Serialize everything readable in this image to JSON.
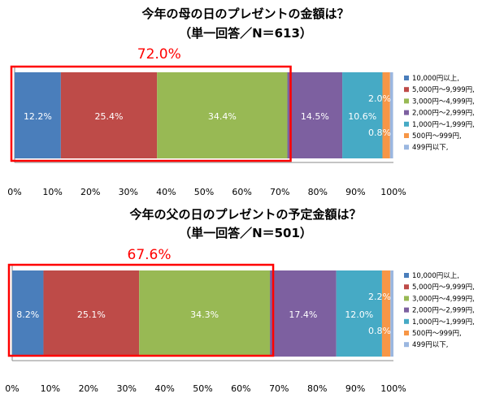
{
  "chart_data": [
    {
      "type": "bar",
      "orientation": "horizontal-stacked",
      "title": "今年の母の日のプレゼントの金額は？",
      "subtitle": "（単一回答／N＝613）",
      "highlight_label": "72.0%",
      "highlight_color": "#ff0000",
      "xlim": [
        0,
        100
      ],
      "x_ticks": [
        "0%",
        "10%",
        "20%",
        "30%",
        "40%",
        "50%",
        "60%",
        "70%",
        "80%",
        "90%",
        "100%"
      ],
      "legend_position": "right",
      "series": [
        {
          "name": "10,000円以上,",
          "value": 12.2,
          "label": "12.2%",
          "color": "#4a7ebb"
        },
        {
          "name": "5,000円～9,999円,",
          "value": 25.4,
          "label": "25.4%",
          "color": "#be4b48"
        },
        {
          "name": "3,000円～4,999円,",
          "value": 34.4,
          "label": "34.4%",
          "color": "#98b954"
        },
        {
          "name": "2,000円～2,999円,",
          "value": 14.5,
          "label": "14.5%",
          "color": "#7d60a0"
        },
        {
          "name": "1,000円～1,999円,",
          "value": 10.6,
          "label": "10.6%",
          "color": "#46aac5"
        },
        {
          "name": "500円～999円,",
          "value": 2.0,
          "label": "2.0%",
          "color": "#f79646"
        },
        {
          "name": "499円以下,",
          "value": 0.8,
          "label": "0.8%",
          "color": "#9bb7e0"
        }
      ]
    },
    {
      "type": "bar",
      "orientation": "horizontal-stacked",
      "title": "今年の父の日のプレゼントの予定金額は？",
      "subtitle": "（単一回答／N＝501）",
      "highlight_label": "67.6%",
      "highlight_color": "#ff0000",
      "xlim": [
        0,
        100
      ],
      "x_ticks": [
        "0%",
        "10%",
        "20%",
        "30%",
        "40%",
        "50%",
        "60%",
        "70%",
        "80%",
        "90%",
        "100%"
      ],
      "legend_position": "right",
      "series": [
        {
          "name": "10,000円以上,",
          "value": 8.2,
          "label": "8.2%",
          "color": "#4a7ebb"
        },
        {
          "name": "5,000円～9,999円,",
          "value": 25.1,
          "label": "25.1%",
          "color": "#be4b48"
        },
        {
          "name": "3,000円～4,999円,",
          "value": 34.3,
          "label": "34.3%",
          "color": "#98b954"
        },
        {
          "name": "2,000円～2,999円,",
          "value": 17.4,
          "label": "17.4%",
          "color": "#7d60a0"
        },
        {
          "name": "1,000円～1,999円,",
          "value": 12.0,
          "label": "12.0%",
          "color": "#46aac5"
        },
        {
          "name": "500円～999円,",
          "value": 2.2,
          "label": "2.2%",
          "color": "#f79646"
        },
        {
          "name": "499円以下,",
          "value": 0.8,
          "label": "0.8%",
          "color": "#9bb7e0"
        }
      ]
    }
  ]
}
